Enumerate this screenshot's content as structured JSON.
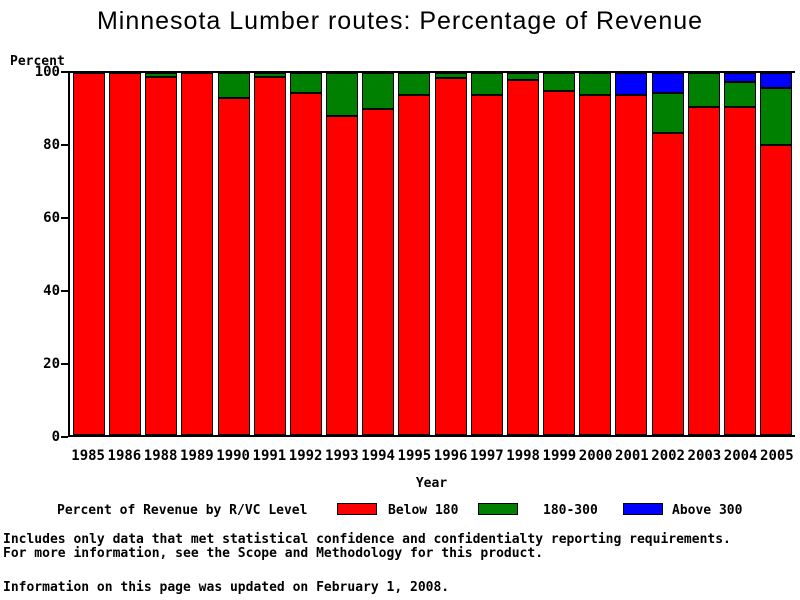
{
  "title": "Minnesota Lumber routes: Percentage of Revenue",
  "chart_data": {
    "type": "bar",
    "stacked": true,
    "title": "Minnesota Lumber routes: Percentage of Revenue",
    "ylabel": "Percent",
    "xlabel": "Year",
    "ylim": [
      0,
      100
    ],
    "yticks": [
      0,
      20,
      40,
      60,
      80,
      100
    ],
    "grid": false,
    "legend_title": "Percent of Revenue by R/VC Level",
    "legend_position": "bottom",
    "categories": [
      "1985",
      "1986",
      "1988",
      "1989",
      "1990",
      "1991",
      "1992",
      "1993",
      "1994",
      "1995",
      "1996",
      "1997",
      "1998",
      "1999",
      "2000",
      "2001",
      "2002",
      "2003",
      "2004",
      "2005"
    ],
    "series": [
      {
        "name": "Below 180",
        "color": "#ff0000",
        "values": [
          100,
          100,
          99,
          100,
          93,
          99,
          94.5,
          88,
          90,
          94,
          98.5,
          94,
          98,
          95,
          94,
          94,
          83.5,
          90.5,
          90.5,
          80
        ]
      },
      {
        "name": "180-300",
        "color": "#008000",
        "values": [
          0,
          0,
          1,
          0,
          7,
          1,
          5.5,
          12,
          10,
          6,
          1.5,
          6,
          2,
          5,
          6,
          0,
          11,
          9.5,
          7,
          16
        ]
      },
      {
        "name": "Above 300",
        "color": "#0000ff",
        "values": [
          0,
          0,
          0,
          0,
          0,
          0,
          0,
          0,
          0,
          0,
          0,
          0,
          0,
          0,
          0,
          6,
          5.5,
          0,
          2.5,
          4
        ]
      }
    ]
  },
  "footer": {
    "line1": "Includes only data that met statistical confidence and confidentialty reporting requirements.",
    "line2": "For more information, see the Scope and Methodology for this product.",
    "line3": "Information on this page was updated on February 1, 2008."
  }
}
